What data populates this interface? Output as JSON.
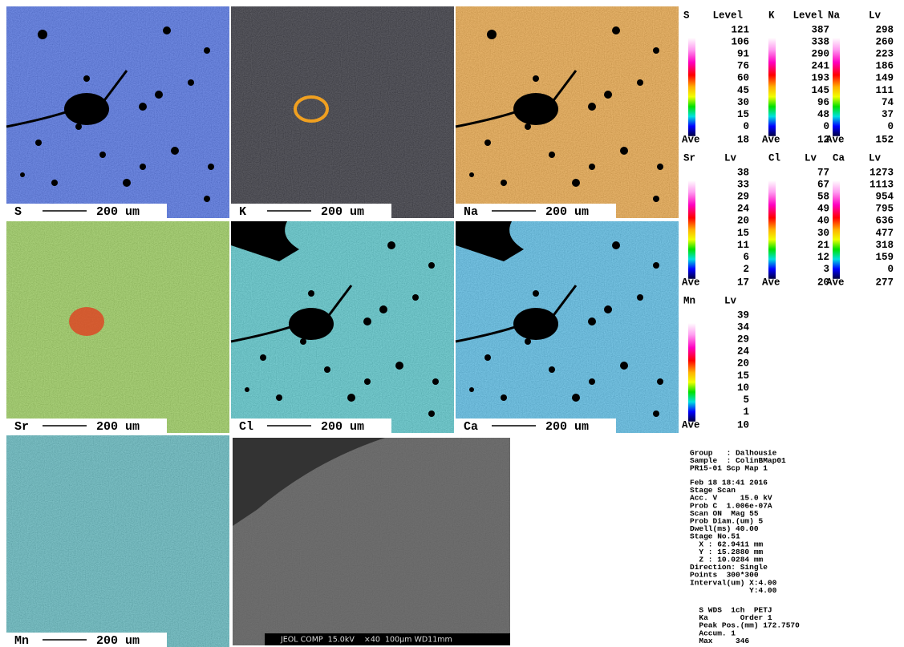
{
  "maps": [
    {
      "label": "S",
      "scale": "200 um",
      "color": "#2a55e8"
    },
    {
      "label": "K",
      "scale": "200 um",
      "color": "#050510"
    },
    {
      "label": "Na",
      "scale": "200 um",
      "color": "#f09a20"
    },
    {
      "label": "Sr",
      "scale": "200 um",
      "color": "#8acb3a"
    },
    {
      "label": "Cl",
      "scale": "200 um",
      "color": "#35c2c8"
    },
    {
      "label": "Ca",
      "scale": "200 um",
      "color": "#35b5ea"
    },
    {
      "label": "Mn",
      "scale": "200 um",
      "color": "#3fb0b8"
    }
  ],
  "sem": {
    "caption": "JEOL COMP  15.0kV    ×40  100μm WD11mm"
  },
  "legends": [
    {
      "name": "S",
      "unit": "Level",
      "values": [
        121,
        106,
        91,
        76,
        60,
        45,
        30,
        15,
        0
      ],
      "ave_label": "Ave",
      "ave": 18
    },
    {
      "name": "K",
      "unit": "Level",
      "values": [
        387,
        338,
        290,
        241,
        193,
        145,
        96,
        48,
        0
      ],
      "ave_label": "Ave",
      "ave": 12
    },
    {
      "name": "Na",
      "unit": "Lv",
      "values": [
        298,
        260,
        223,
        186,
        149,
        111,
        74,
        37,
        0
      ],
      "ave_label": "Ave",
      "ave": 152
    },
    {
      "name": "Sr",
      "unit": "Lv",
      "values": [
        38,
        33,
        29,
        24,
        20,
        15,
        11,
        6,
        2
      ],
      "ave_label": "Ave",
      "ave": 17
    },
    {
      "name": "Cl",
      "unit": "Lv",
      "values": [
        77,
        67,
        58,
        49,
        40,
        30,
        21,
        12,
        3
      ],
      "ave_label": "Ave",
      "ave": 20
    },
    {
      "name": "Ca",
      "unit": "Lv",
      "values": [
        1273,
        1113,
        954,
        795,
        636,
        477,
        318,
        159,
        0
      ],
      "ave_label": "Ave",
      "ave": 277
    },
    {
      "name": "Mn",
      "unit": "Lv",
      "values": [
        39,
        34,
        29,
        24,
        20,
        15,
        10,
        5,
        1
      ],
      "ave_label": "Ave",
      "ave": 10
    }
  ],
  "info": [
    [
      "Group   : Dalhousie",
      "Sample  : ColinBMap01",
      "PR15-01 Scp Map 1"
    ],
    [
      "Feb 18 18:41 2016",
      "Stage Scan",
      "Acc. V     15.0 kV",
      "Prob C  1.006e-07A",
      "Scan ON  Mag 55",
      "Prob Diam.(um) 5",
      "Dwell(ms) 40.00",
      "Stage No.51",
      "  X : 62.9411 mm",
      "  Y : 15.2880 mm",
      "  Z : 10.0284 mm",
      "Direction: Single",
      "Points  300*300",
      "Interval(um) X:4.00",
      "             Y:4.00"
    ],
    [
      "  S WDS  1ch  PETJ",
      "  Ka       Order 1",
      "  Peak Pos.(mm) 172.7570",
      "  Accum. 1",
      "  Max     346"
    ]
  ]
}
